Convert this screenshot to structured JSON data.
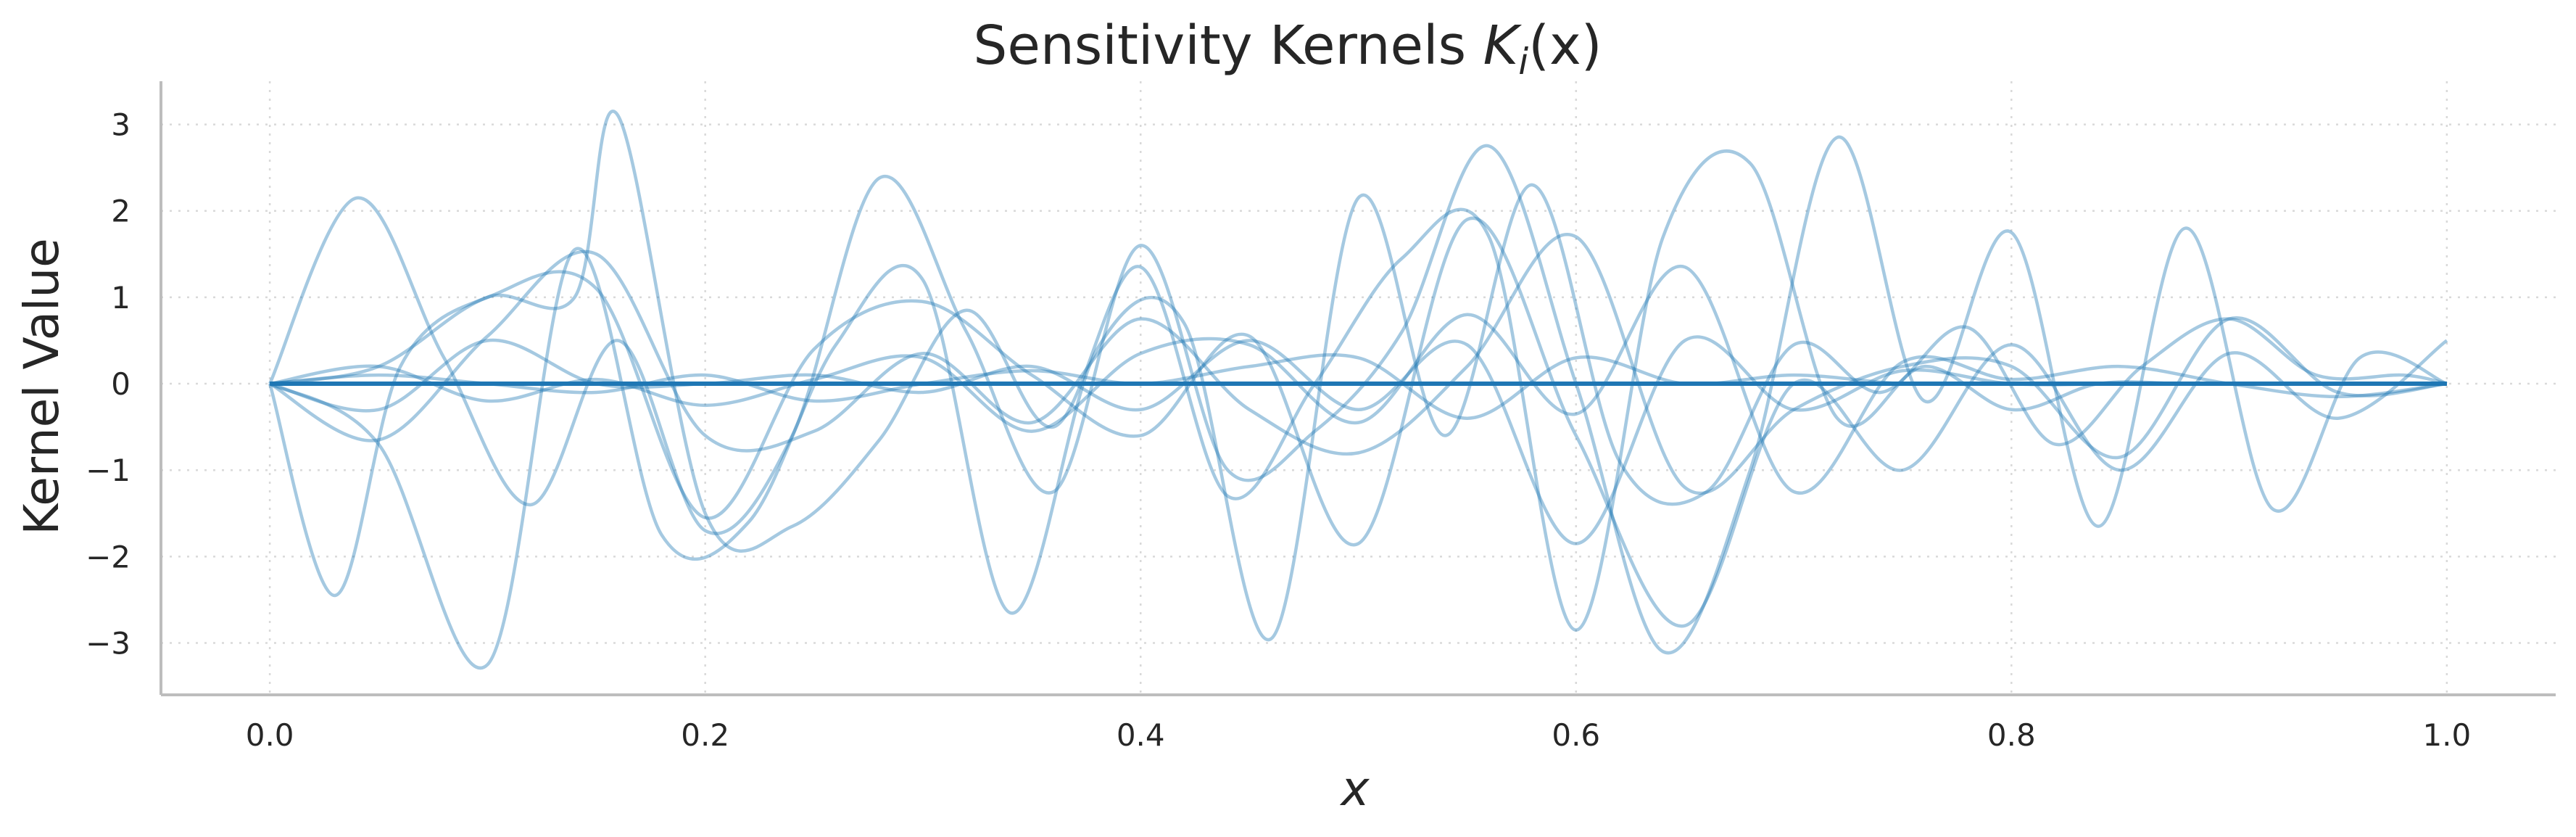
{
  "chart_data": {
    "type": "line",
    "title": "Sensitivity Kernels ",
    "title_math": "K",
    "title_sub": "i",
    "title_args": "(x)",
    "xlabel": "x",
    "ylabel": "Kernel Value",
    "xlim": [
      -0.05,
      1.05
    ],
    "ylim": [
      -3.6,
      3.5
    ],
    "xticks": [
      0.0,
      0.2,
      0.4,
      0.6,
      0.8,
      1.0
    ],
    "xtick_labels": [
      "0.0",
      "0.2",
      "0.4",
      "0.6",
      "0.8",
      "1.0"
    ],
    "yticks": [
      -3,
      -2,
      -1,
      0,
      1,
      2,
      3
    ],
    "ytick_labels": [
      "−3",
      "−2",
      "−1",
      "0",
      "1",
      "2",
      "3"
    ],
    "grid": true,
    "colors": {
      "series_color": "#1f77b4",
      "mean_color": "#1f77b4",
      "grid_color": "#d9d9d9",
      "axis_color": "#bdbdbd"
    },
    "series": [
      {
        "x": [
          0.0,
          0.04,
          0.08,
          0.12,
          0.16,
          0.2,
          0.24,
          0.28,
          0.32,
          0.36,
          0.4,
          0.44,
          0.48,
          0.52,
          0.56,
          0.6,
          0.64,
          0.68,
          0.72,
          0.76,
          0.8,
          0.84,
          0.88,
          0.92,
          0.96,
          1.0
        ],
        "y": [
          0,
          2.15,
          0.3,
          -1.4,
          0.5,
          -1.7,
          -0.6,
          2.38,
          0.6,
          -1.25,
          1.6,
          -1.0,
          -0.55,
          0.6,
          2.75,
          0.0,
          -3.1,
          -1.0,
          2.85,
          -0.2,
          1.75,
          -1.65,
          1.8,
          -1.45,
          0.3,
          0
        ]
      },
      {
        "x": [
          0.0,
          0.03,
          0.06,
          0.1,
          0.14,
          0.16,
          0.2,
          0.24,
          0.28,
          0.32,
          0.36,
          0.4,
          0.44,
          0.48,
          0.52,
          0.56,
          0.6,
          0.64,
          0.68,
          0.72,
          0.76,
          0.8,
          0.84,
          0.88,
          0.92,
          0.96,
          1.0
        ],
        "y": [
          0,
          -2.45,
          0.2,
          1.0,
          1.0,
          3.1,
          -1.5,
          -1.65,
          -0.65,
          0.85,
          -0.5,
          1.35,
          -1.3,
          0.0,
          1.45,
          1.7,
          -2.85,
          1.7,
          2.55,
          -0.4,
          0.2,
          -0.3,
          0.0,
          0.0,
          0.0,
          0.0,
          0
        ]
      },
      {
        "x": [
          0.0,
          0.05,
          0.1,
          0.14,
          0.18,
          0.22,
          0.26,
          0.3,
          0.34,
          0.38,
          0.42,
          0.46,
          0.5,
          0.54,
          0.58,
          0.62,
          0.66,
          0.7,
          0.74,
          0.78,
          0.82,
          0.86,
          0.9,
          0.94,
          0.98,
          1.0
        ],
        "y": [
          0,
          -0.7,
          -3.25,
          1.55,
          -1.75,
          -1.6,
          0.45,
          1.2,
          -2.65,
          0.4,
          0.7,
          -2.95,
          2.15,
          -0.6,
          2.3,
          -0.9,
          -1.25,
          0.45,
          -0.1,
          0.65,
          -0.7,
          0.2,
          0.75,
          0.1,
          0.1,
          0.0
        ]
      },
      {
        "x": [
          0.0,
          0.05,
          0.1,
          0.15,
          0.2,
          0.25,
          0.3,
          0.35,
          0.4,
          0.45,
          0.5,
          0.55,
          0.6,
          0.65,
          0.7,
          0.75,
          0.8,
          0.85,
          0.9,
          0.95,
          1.0
        ],
        "y": [
          0,
          0.2,
          1.0,
          1.1,
          -1.55,
          0.4,
          0.95,
          0.1,
          -0.6,
          0.55,
          -1.85,
          1.9,
          -0.6,
          -2.8,
          0.0,
          -1.0,
          0.45,
          -1.0,
          0.35,
          -0.4,
          0.5
        ]
      },
      {
        "x": [
          0.0,
          0.05,
          0.1,
          0.15,
          0.2,
          0.25,
          0.3,
          0.35,
          0.4,
          0.45,
          0.5,
          0.55,
          0.6,
          0.65,
          0.7,
          0.75,
          0.8,
          0.85,
          0.9,
          0.95,
          1.0
        ],
        "y": [
          0,
          -0.65,
          0.55,
          1.5,
          -0.6,
          -0.55,
          0.35,
          -0.45,
          0.75,
          -0.3,
          -0.8,
          0.2,
          1.7,
          -1.2,
          -0.3,
          0.2,
          0.2,
          -0.85,
          0.75,
          -0.1,
          0.0
        ]
      },
      {
        "x": [
          0.0,
          0.05,
          0.1,
          0.15,
          0.2,
          0.25,
          0.3,
          0.35,
          0.4,
          0.45,
          0.5,
          0.55,
          0.6,
          0.65,
          0.7,
          0.75,
          0.8,
          0.85,
          0.9,
          0.95,
          1.0
        ],
        "y": [
          0,
          0.2,
          -0.2,
          0.05,
          -0.25,
          0.05,
          0.3,
          -0.55,
          0.35,
          0.45,
          -0.45,
          0.8,
          -0.35,
          1.35,
          -1.25,
          0.25,
          0.05,
          0.2,
          0.0,
          -0.15,
          0.0
        ]
      },
      {
        "x": [
          0.0,
          0.05,
          0.1,
          0.15,
          0.2,
          0.25,
          0.3,
          0.35,
          0.4,
          0.45,
          0.5,
          0.55,
          0.6,
          0.65,
          0.7,
          0.75,
          0.8,
          0.85,
          0.9,
          0.95,
          1.0
        ],
        "y": [
          0,
          -0.3,
          0.5,
          0.0,
          0.0,
          0.1,
          -0.1,
          0.2,
          -0.3,
          0.5,
          -0.3,
          0.45,
          -1.85,
          0.5,
          -0.3,
          0.15,
          0.0,
          0.0,
          0.0,
          0.0,
          0.0
        ]
      },
      {
        "x": [
          0.0,
          0.05,
          0.1,
          0.15,
          0.2,
          0.25,
          0.3,
          0.35,
          0.4,
          0.45,
          0.5,
          0.55,
          0.6,
          0.65,
          0.7,
          0.75,
          0.8,
          0.85,
          0.9,
          0.95,
          1.0
        ],
        "y": [
          0,
          0.1,
          0.0,
          -0.1,
          0.1,
          -0.2,
          0.0,
          0.15,
          0.0,
          0.2,
          0.3,
          -0.4,
          0.3,
          0.0,
          0.1,
          0.0,
          0.0,
          0.0,
          0.0,
          0.0,
          0.0
        ]
      }
    ],
    "mean_series": {
      "x": [
        0.0,
        1.0
      ],
      "y": [
        0.0,
        0.0
      ]
    }
  }
}
